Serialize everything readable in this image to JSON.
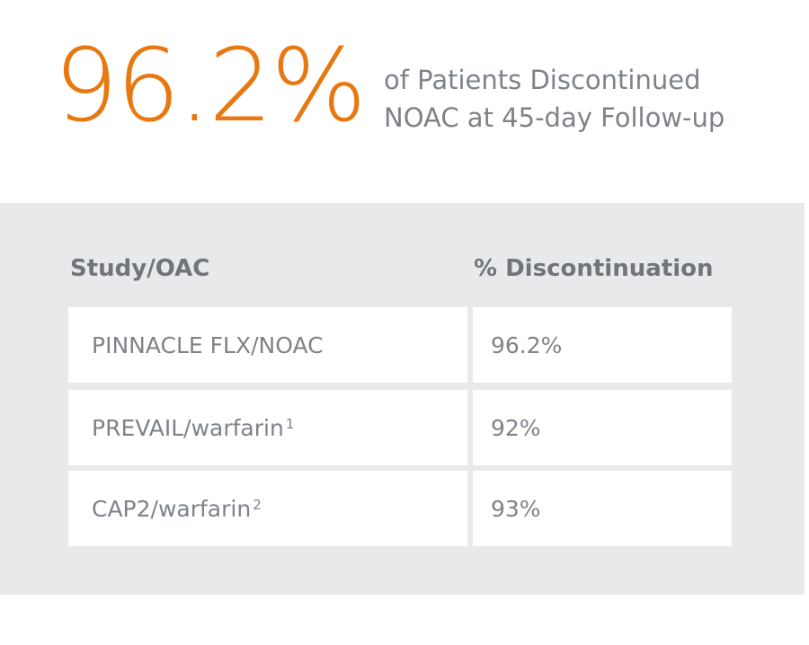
{
  "headline": {
    "stat": "96.2%",
    "caption_line1": "of Patients Discontinued",
    "caption_line2": "NOAC at 45-day Follow-up"
  },
  "table": {
    "columns": [
      "Study/OAC",
      "% Discontinuation"
    ],
    "rows": [
      {
        "study": "PINNACLE FLX/NOAC",
        "ref": "",
        "value": "96.2%"
      },
      {
        "study": "PREVAIL/warfarin",
        "ref": "1",
        "value": "92%"
      },
      {
        "study": "CAP2/warfarin",
        "ref": "2",
        "value": "93%"
      }
    ]
  },
  "colors": {
    "accent": "#E87810",
    "text": "#7d8389",
    "header_text": "#6f757b",
    "panel_bg": "#e8e9eb",
    "cell_bg": "#ffffff"
  }
}
